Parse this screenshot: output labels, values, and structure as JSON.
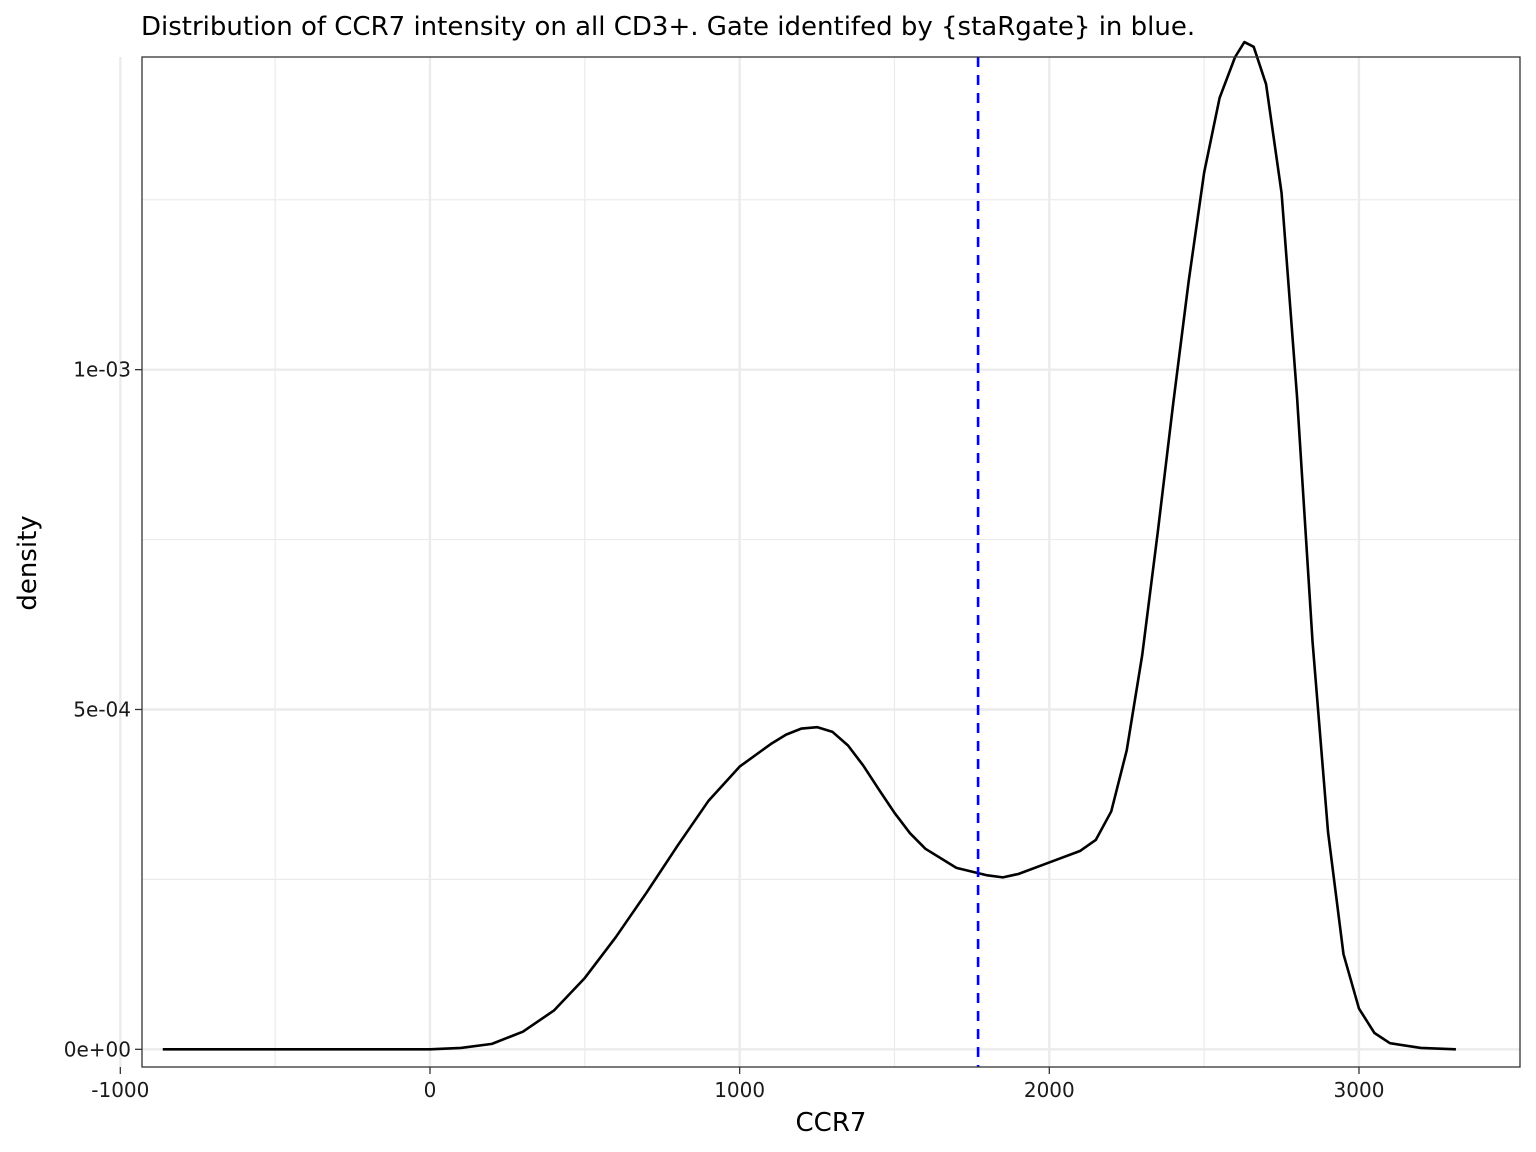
{
  "chart_data": {
    "type": "line",
    "title": "Distribution of CCR7 intensity on all CD3+. Gate identifed by {staRgate} in blue.",
    "xlabel": "CCR7",
    "ylabel": "density",
    "xlim": [
      -930,
      3520
    ],
    "ylim": [
      -2.6e-05,
      0.00146
    ],
    "x_ticks": [
      -1000,
      0,
      1000,
      2000,
      3000
    ],
    "x_tick_labels": [
      "-1000",
      "0",
      "1000",
      "2000",
      "3000"
    ],
    "x_minor_ticks": [
      -500,
      500,
      1500,
      2500
    ],
    "y_ticks": [
      0,
      0.0005,
      0.001
    ],
    "y_tick_labels": [
      "0e+00",
      "5e-04",
      "1e-03"
    ],
    "y_minor_ticks": [
      0.00025,
      0.00075,
      0.00125
    ],
    "grid": true,
    "legend": "none",
    "series": [
      {
        "color": "#000000",
        "points": [
          [
            -863,
            0.0
          ],
          [
            -600,
            0.0
          ],
          [
            -300,
            0.0
          ],
          [
            0,
            0.0
          ],
          [
            100,
            2e-06
          ],
          [
            200,
            8e-06
          ],
          [
            300,
            2.6e-05
          ],
          [
            400,
            5.7e-05
          ],
          [
            500,
            0.000105
          ],
          [
            600,
            0.000165
          ],
          [
            700,
            0.000231
          ],
          [
            800,
            0.0003
          ],
          [
            900,
            0.000366
          ],
          [
            1000,
            0.000416
          ],
          [
            1100,
            0.000449
          ],
          [
            1150,
            0.000463
          ],
          [
            1200,
            0.000472
          ],
          [
            1250,
            0.000474
          ],
          [
            1300,
            0.000467
          ],
          [
            1350,
            0.000447
          ],
          [
            1400,
            0.000417
          ],
          [
            1450,
            0.000382
          ],
          [
            1500,
            0.000348
          ],
          [
            1550,
            0.000318
          ],
          [
            1600,
            0.000295
          ],
          [
            1700,
            0.000267
          ],
          [
            1800,
            0.000256
          ],
          [
            1850,
            0.000253
          ],
          [
            1900,
            0.000258
          ],
          [
            2000,
            0.000275
          ],
          [
            2100,
            0.000292
          ],
          [
            2150,
            0.000308
          ],
          [
            2200,
            0.00035
          ],
          [
            2250,
            0.00044
          ],
          [
            2300,
            0.00058
          ],
          [
            2350,
            0.00076
          ],
          [
            2400,
            0.00095
          ],
          [
            2450,
            0.00113
          ],
          [
            2500,
            0.00129
          ],
          [
            2550,
            0.0014
          ],
          [
            2600,
            0.00146
          ],
          [
            2630,
            0.001482
          ],
          [
            2660,
            0.001475
          ],
          [
            2700,
            0.00142
          ],
          [
            2750,
            0.00126
          ],
          [
            2800,
            0.00096
          ],
          [
            2850,
            0.0006
          ],
          [
            2900,
            0.00032
          ],
          [
            2950,
            0.00014
          ],
          [
            3000,
            6e-05
          ],
          [
            3050,
            2.4e-05
          ],
          [
            3100,
            9e-06
          ],
          [
            3200,
            2e-06
          ],
          [
            3313,
            0.0
          ]
        ]
      }
    ],
    "gate": {
      "x": 1770,
      "color": "#0000ff",
      "style": "dashed"
    }
  }
}
